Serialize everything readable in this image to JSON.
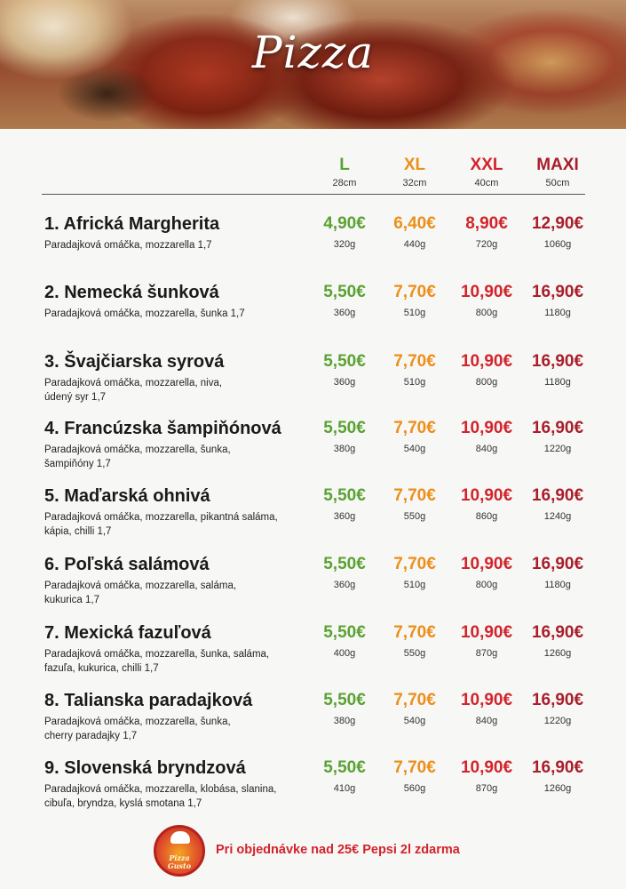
{
  "header": {
    "title": "Pizza"
  },
  "sizes": [
    {
      "label": "L",
      "cm": "28cm",
      "color": "#5aa233"
    },
    {
      "label": "XL",
      "cm": "32cm",
      "color": "#ec8f1b"
    },
    {
      "label": "XXL",
      "cm": "40cm",
      "color": "#d3232b"
    },
    {
      "label": "MAXI",
      "cm": "50cm",
      "color": "#a91e2b"
    }
  ],
  "items": [
    {
      "name": "1. Africká Margherita",
      "desc": "Paradajková omáčka, mozzarella 1,7",
      "prices": [
        "4,90€",
        "6,40€",
        "8,90€",
        "12,90€"
      ],
      "grams": [
        "320g",
        "440g",
        "720g",
        "1060g"
      ]
    },
    {
      "name": "2. Nemecká šunková",
      "desc": "Paradajková omáčka, mozzarella, šunka 1,7",
      "prices": [
        "5,50€",
        "7,70€",
        "10,90€",
        "16,90€"
      ],
      "grams": [
        "360g",
        "510g",
        "800g",
        "1180g"
      ]
    },
    {
      "name": "3. Švajčiarska syrová",
      "desc": "Paradajková omáčka, mozzarella, niva, údený syr 1,7",
      "prices": [
        "5,50€",
        "7,70€",
        "10,90€",
        "16,90€"
      ],
      "grams": [
        "360g",
        "510g",
        "800g",
        "1180g"
      ]
    },
    {
      "name": "4. Francúzska šampiňónová",
      "desc": "Paradajková omáčka, mozzarella, šunka, šampiňóny 1,7",
      "prices": [
        "5,50€",
        "7,70€",
        "10,90€",
        "16,90€"
      ],
      "grams": [
        "380g",
        "540g",
        "840g",
        "1220g"
      ]
    },
    {
      "name": "5. Maďarská ohnivá",
      "desc": "Paradajková omáčka, mozzarella, pikantná saláma, kápia, chilli 1,7",
      "prices": [
        "5,50€",
        "7,70€",
        "10,90€",
        "16,90€"
      ],
      "grams": [
        "360g",
        "550g",
        "860g",
        "1240g"
      ]
    },
    {
      "name": "6. Poľská salámová",
      "desc": "Paradajková omáčka, mozzarella, saláma, kukurica 1,7",
      "prices": [
        "5,50€",
        "7,70€",
        "10,90€",
        "16,90€"
      ],
      "grams": [
        "360g",
        "510g",
        "800g",
        "1180g"
      ]
    },
    {
      "name": "7. Mexická fazuľová",
      "desc": "Paradajková omáčka, mozzarella, šunka, saláma, fazuľa, kukurica, chilli 1,7",
      "prices": [
        "5,50€",
        "7,70€",
        "10,90€",
        "16,90€"
      ],
      "grams": [
        "400g",
        "550g",
        "870g",
        "1260g"
      ]
    },
    {
      "name": "8. Talianska paradajková",
      "desc": "Paradajková omáčka, mozzarella, šunka, cherry paradajky 1,7",
      "prices": [
        "5,50€",
        "7,70€",
        "10,90€",
        "16,90€"
      ],
      "grams": [
        "380g",
        "540g",
        "840g",
        "1220g"
      ]
    },
    {
      "name": "9. Slovenská bryndzová",
      "desc": "Paradajková omáčka, mozzarella, klobása, slanina, cibuľa, bryndza, kyslá smotana 1,7",
      "prices": [
        "5,50€",
        "7,70€",
        "10,90€",
        "16,90€"
      ],
      "grams": [
        "410g",
        "560g",
        "870g",
        "1260g"
      ]
    }
  ],
  "footer": {
    "logo_text": "Pizza Gusto",
    "promo": "Pri objednávke nad 25€ Pepsi 2l zdarma"
  }
}
